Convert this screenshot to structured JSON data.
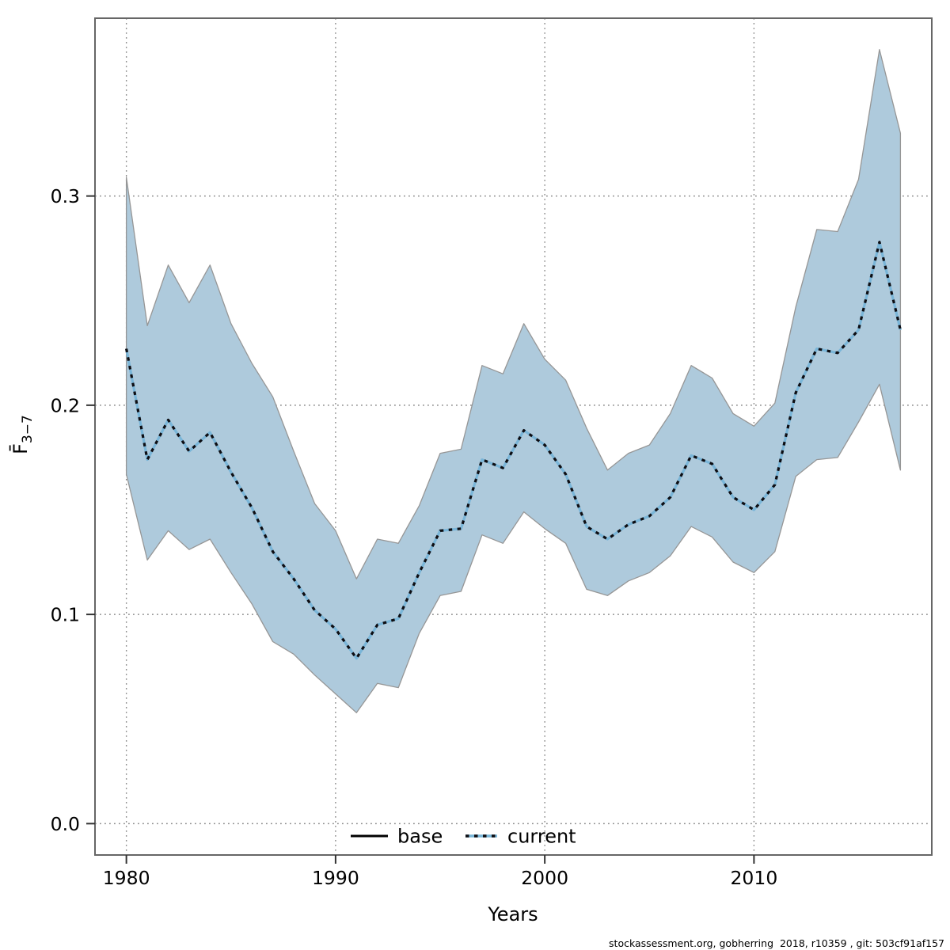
{
  "footer": "stockassessment.org, gobherring  2018, r10359 , git: 503cf91af157",
  "axes": {
    "x_label": "Years",
    "y_label_base": "F̄",
    "y_label_sub": "3−7"
  },
  "legend": {
    "items": [
      {
        "label": "base",
        "sample": "solid-black-line"
      },
      {
        "label": "current",
        "sample": "dotted-blue-line"
      }
    ]
  },
  "colors": {
    "band_fill": "#aecadc",
    "band_edge": "#969696",
    "current_line_blue": "#79b5d8",
    "current_line_dash": "#0d0d12",
    "base_line": "#000000",
    "grid": "#8a8a8a",
    "frame": "#666666",
    "text": "#000000",
    "background": "#ffffff"
  },
  "chart_data": {
    "type": "line",
    "title": "",
    "xlabel": "Years",
    "ylabel": "F̄3−7",
    "grid": true,
    "legend_position": "bottom-center",
    "x_range": [
      1978.5,
      2018.5
    ],
    "y_range": [
      -0.015,
      0.385
    ],
    "x_ticks": [
      1980,
      1990,
      2000,
      2010
    ],
    "y_ticks": [
      0.0,
      0.1,
      0.2,
      0.3
    ],
    "x": [
      1980,
      1981,
      1982,
      1983,
      1984,
      1985,
      1986,
      1987,
      1988,
      1989,
      1990,
      1991,
      1992,
      1993,
      1994,
      1995,
      1996,
      1997,
      1998,
      1999,
      2000,
      2001,
      2002,
      2003,
      2004,
      2005,
      2006,
      2007,
      2008,
      2009,
      2010,
      2011,
      2012,
      2013,
      2014,
      2015,
      2016,
      2017
    ],
    "series": [
      {
        "name": "current",
        "style": "dotted",
        "values": [
          0.227,
          0.174,
          0.193,
          0.178,
          0.187,
          0.168,
          0.151,
          0.13,
          0.117,
          0.102,
          0.093,
          0.079,
          0.095,
          0.098,
          0.12,
          0.14,
          0.141,
          0.174,
          0.17,
          0.188,
          0.181,
          0.167,
          0.142,
          0.136,
          0.143,
          0.147,
          0.156,
          0.176,
          0.172,
          0.156,
          0.15,
          0.162,
          0.206,
          0.227,
          0.225,
          0.236,
          0.278,
          0.236
        ]
      }
    ],
    "band": {
      "name": "confidence-region",
      "low": [
        0.167,
        0.126,
        0.14,
        0.131,
        0.136,
        0.12,
        0.105,
        0.087,
        0.081,
        0.071,
        0.062,
        0.053,
        0.067,
        0.065,
        0.091,
        0.109,
        0.111,
        0.138,
        0.134,
        0.149,
        0.141,
        0.134,
        0.112,
        0.109,
        0.116,
        0.12,
        0.128,
        0.142,
        0.137,
        0.125,
        0.12,
        0.13,
        0.166,
        0.174,
        0.175,
        0.192,
        0.21,
        0.169
      ],
      "high": [
        0.309,
        0.238,
        0.267,
        0.249,
        0.267,
        0.239,
        0.22,
        0.204,
        0.178,
        0.153,
        0.14,
        0.117,
        0.136,
        0.134,
        0.152,
        0.177,
        0.179,
        0.219,
        0.215,
        0.239,
        0.222,
        0.212,
        0.189,
        0.169,
        0.177,
        0.181,
        0.196,
        0.219,
        0.213,
        0.196,
        0.19,
        0.201,
        0.247,
        0.284,
        0.283,
        0.308,
        0.37,
        0.33
      ]
    }
  }
}
